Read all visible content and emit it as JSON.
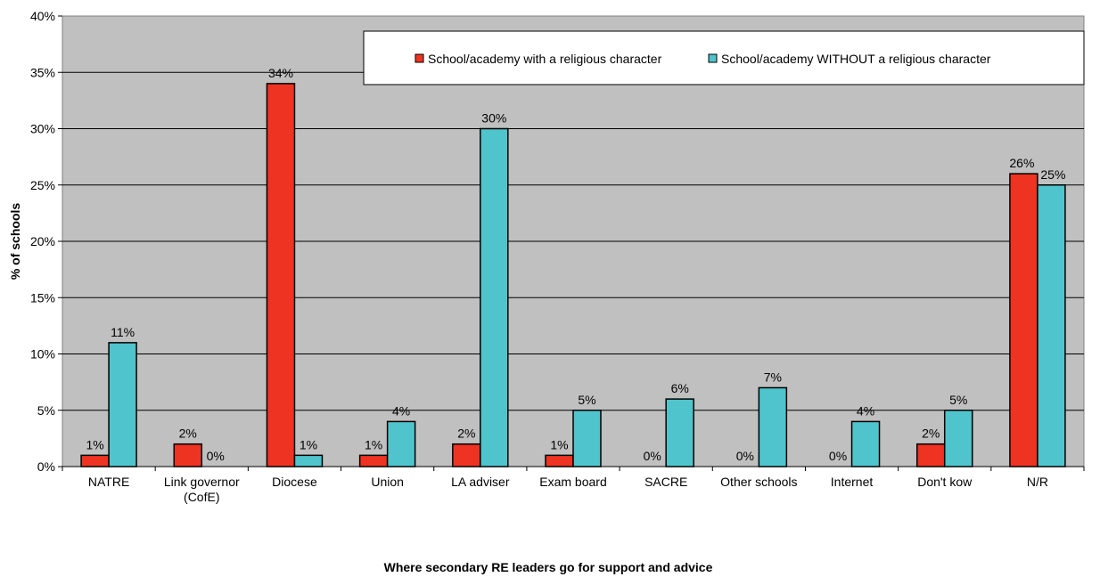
{
  "chart_data": {
    "type": "bar",
    "title": "",
    "xlabel": "Where secondary  RE leaders go for support and advice",
    "ylabel": "% of schools",
    "ylim": [
      0,
      40
    ],
    "yticks": [
      0,
      5,
      10,
      15,
      20,
      25,
      30,
      35,
      40
    ],
    "ytick_suffix": "%",
    "grid": "horizontal",
    "legend_position": "top-right",
    "categories": [
      [
        "NATRE"
      ],
      [
        "Link governor",
        "(CofE)"
      ],
      [
        "Diocese"
      ],
      [
        "Union"
      ],
      [
        "LA adviser"
      ],
      [
        "Exam board"
      ],
      [
        "SACRE"
      ],
      [
        "Other schools"
      ],
      [
        "Internet"
      ],
      [
        "Don't kow"
      ],
      [
        "N/R"
      ]
    ],
    "series": [
      {
        "name": "School/academy with a religious character",
        "color": "#ee3322",
        "values": [
          1,
          2,
          34,
          1,
          2,
          1,
          0,
          0,
          0,
          2,
          26
        ]
      },
      {
        "name": "School/academy WITHOUT a religious character",
        "color": "#4fc4cc",
        "values": [
          11,
          0,
          1,
          4,
          30,
          5,
          6,
          7,
          4,
          5,
          25
        ]
      }
    ],
    "value_suffix": "%",
    "plot_background": "#c0c0c0"
  }
}
